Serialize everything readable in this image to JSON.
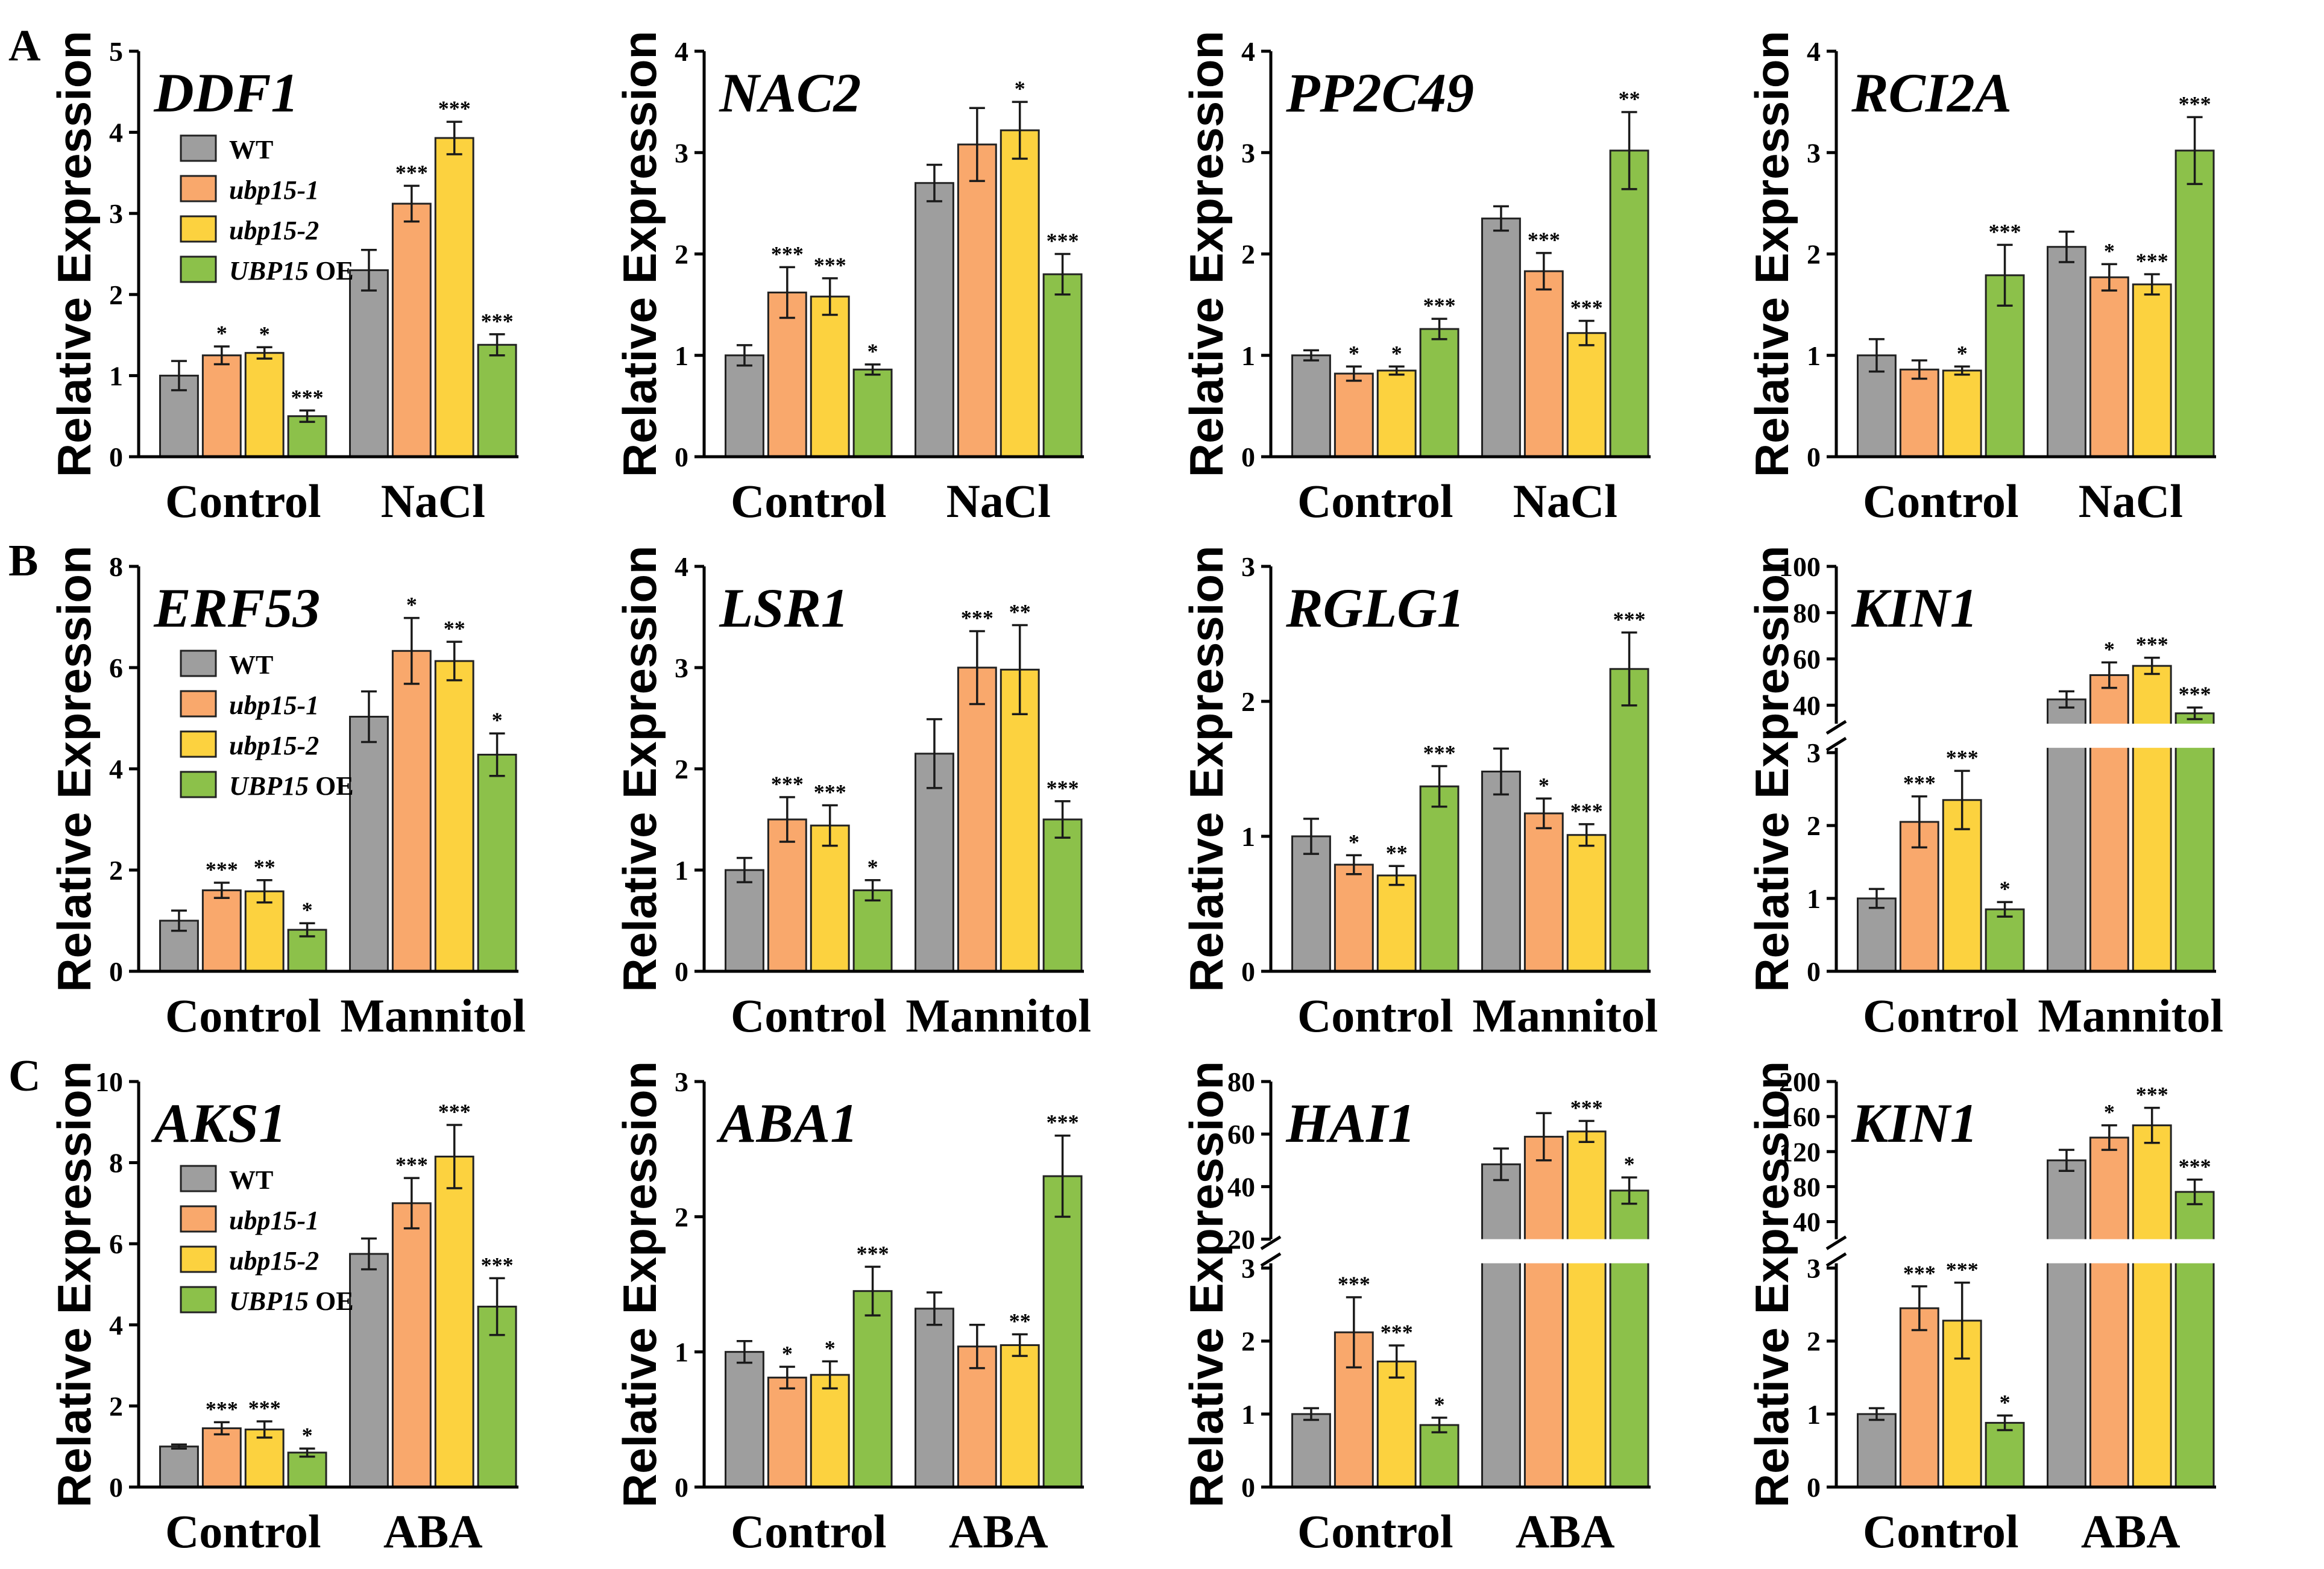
{
  "panel_letters": [
    "A",
    "B",
    "C"
  ],
  "ylabel": "Relative Expression",
  "series_colors": [
    "#9e9e9e",
    "#f9a86c",
    "#fcd23f",
    "#8cc14a"
  ],
  "legend": {
    "items": [
      {
        "italic": "",
        "plain": "WT"
      },
      {
        "italic": "ubp15-1",
        "plain": ""
      },
      {
        "italic": "ubp15-2",
        "plain": ""
      },
      {
        "italic": "UBP15",
        "plain": " OE"
      }
    ]
  },
  "chart_data": [
    {
      "type": "bar",
      "title": "DDF1",
      "categories": [
        "Control",
        "NaCl"
      ],
      "ylim": [
        0,
        5
      ],
      "yticks": [
        0,
        1,
        2,
        3,
        4,
        5
      ],
      "series": [
        {
          "name": "WT",
          "values": [
            1.0,
            2.3
          ],
          "errors": [
            0.18,
            0.25
          ],
          "sig": [
            "",
            ""
          ]
        },
        {
          "name": "ubp15-1",
          "values": [
            1.25,
            3.12
          ],
          "errors": [
            0.11,
            0.22
          ],
          "sig": [
            "*",
            "***"
          ]
        },
        {
          "name": "ubp15-2",
          "values": [
            1.28,
            3.93
          ],
          "errors": [
            0.07,
            0.2
          ],
          "sig": [
            "*",
            "***"
          ]
        },
        {
          "name": "UBP15 OE",
          "values": [
            0.5,
            1.38
          ],
          "errors": [
            0.07,
            0.13
          ],
          "sig": [
            "***",
            "***"
          ]
        }
      ]
    },
    {
      "type": "bar",
      "title": "NAC2",
      "categories": [
        "Control",
        "NaCl"
      ],
      "ylim": [
        0,
        4
      ],
      "yticks": [
        0,
        1,
        2,
        3,
        4
      ],
      "series": [
        {
          "name": "WT",
          "values": [
            1.0,
            2.7
          ],
          "errors": [
            0.1,
            0.18
          ],
          "sig": [
            "",
            ""
          ]
        },
        {
          "name": "ubp15-1",
          "values": [
            1.62,
            3.08
          ],
          "errors": [
            0.25,
            0.36
          ],
          "sig": [
            "***",
            ""
          ]
        },
        {
          "name": "ubp15-2",
          "values": [
            1.58,
            3.22
          ],
          "errors": [
            0.18,
            0.28
          ],
          "sig": [
            "***",
            "*"
          ]
        },
        {
          "name": "UBP15 OE",
          "values": [
            0.86,
            1.8
          ],
          "errors": [
            0.05,
            0.2
          ],
          "sig": [
            "*",
            "***"
          ]
        }
      ]
    },
    {
      "type": "bar",
      "title": "PP2C49",
      "categories": [
        "Control",
        "NaCl"
      ],
      "ylim": [
        0,
        4
      ],
      "yticks": [
        0,
        1,
        2,
        3,
        4
      ],
      "series": [
        {
          "name": "WT",
          "values": [
            1.0,
            2.35
          ],
          "errors": [
            0.05,
            0.12
          ],
          "sig": [
            "",
            ""
          ]
        },
        {
          "name": "ubp15-1",
          "values": [
            0.82,
            1.83
          ],
          "errors": [
            0.07,
            0.18
          ],
          "sig": [
            "*",
            "***"
          ]
        },
        {
          "name": "ubp15-2",
          "values": [
            0.85,
            1.22
          ],
          "errors": [
            0.04,
            0.12
          ],
          "sig": [
            "*",
            "***"
          ]
        },
        {
          "name": "UBP15 OE",
          "values": [
            1.26,
            3.02
          ],
          "errors": [
            0.1,
            0.38
          ],
          "sig": [
            "***",
            "**"
          ]
        }
      ]
    },
    {
      "type": "bar",
      "title": "RCI2A",
      "categories": [
        "Control",
        "NaCl"
      ],
      "ylim": [
        0,
        4
      ],
      "yticks": [
        0,
        1,
        2,
        3,
        4
      ],
      "series": [
        {
          "name": "WT",
          "values": [
            1.0,
            2.07
          ],
          "errors": [
            0.16,
            0.15
          ],
          "sig": [
            "",
            ""
          ]
        },
        {
          "name": "ubp15-1",
          "values": [
            0.86,
            1.77
          ],
          "errors": [
            0.09,
            0.13
          ],
          "sig": [
            "",
            "*"
          ]
        },
        {
          "name": "ubp15-2",
          "values": [
            0.85,
            1.7
          ],
          "errors": [
            0.04,
            0.1
          ],
          "sig": [
            "*",
            "***"
          ]
        },
        {
          "name": "UBP15 OE",
          "values": [
            1.79,
            3.02
          ],
          "errors": [
            0.3,
            0.33
          ],
          "sig": [
            "***",
            "***"
          ]
        }
      ]
    },
    {
      "type": "bar",
      "title": "ERF53",
      "categories": [
        "Control",
        "Mannitol"
      ],
      "ylim": [
        0,
        8
      ],
      "yticks": [
        0,
        2,
        4,
        6,
        8
      ],
      "series": [
        {
          "name": "WT",
          "values": [
            1.0,
            5.03
          ],
          "errors": [
            0.2,
            0.5
          ],
          "sig": [
            "",
            ""
          ]
        },
        {
          "name": "ubp15-1",
          "values": [
            1.6,
            6.33
          ],
          "errors": [
            0.15,
            0.65
          ],
          "sig": [
            "***",
            "*"
          ]
        },
        {
          "name": "ubp15-2",
          "values": [
            1.58,
            6.13
          ],
          "errors": [
            0.22,
            0.38
          ],
          "sig": [
            "**",
            "**"
          ]
        },
        {
          "name": "UBP15 OE",
          "values": [
            0.82,
            4.28
          ],
          "errors": [
            0.13,
            0.42
          ],
          "sig": [
            "*",
            "*"
          ]
        }
      ]
    },
    {
      "type": "bar",
      "title": "LSR1",
      "categories": [
        "Control",
        "Mannitol"
      ],
      "ylim": [
        0,
        4
      ],
      "yticks": [
        0,
        1,
        2,
        3,
        4
      ],
      "series": [
        {
          "name": "WT",
          "values": [
            1.0,
            2.15
          ],
          "errors": [
            0.12,
            0.34
          ],
          "sig": [
            "",
            ""
          ]
        },
        {
          "name": "ubp15-1",
          "values": [
            1.5,
            3.0
          ],
          "errors": [
            0.22,
            0.36
          ],
          "sig": [
            "***",
            "***"
          ]
        },
        {
          "name": "ubp15-2",
          "values": [
            1.44,
            2.98
          ],
          "errors": [
            0.2,
            0.44
          ],
          "sig": [
            "***",
            "**"
          ]
        },
        {
          "name": "UBP15 OE",
          "values": [
            0.8,
            1.5
          ],
          "errors": [
            0.1,
            0.18
          ],
          "sig": [
            "*",
            "***"
          ]
        }
      ]
    },
    {
      "type": "bar",
      "title": "RGLG1",
      "categories": [
        "Control",
        "Mannitol"
      ],
      "ylim": [
        0,
        3
      ],
      "yticks": [
        0,
        1,
        2,
        3
      ],
      "series": [
        {
          "name": "WT",
          "values": [
            1.0,
            1.48
          ],
          "errors": [
            0.13,
            0.17
          ],
          "sig": [
            "",
            ""
          ]
        },
        {
          "name": "ubp15-1",
          "values": [
            0.79,
            1.17
          ],
          "errors": [
            0.07,
            0.11
          ],
          "sig": [
            "*",
            "*"
          ]
        },
        {
          "name": "ubp15-2",
          "values": [
            0.71,
            1.01
          ],
          "errors": [
            0.07,
            0.08
          ],
          "sig": [
            "**",
            "***"
          ]
        },
        {
          "name": "UBP15 OE",
          "values": [
            1.37,
            2.24
          ],
          "errors": [
            0.15,
            0.27
          ],
          "sig": [
            "***",
            "***"
          ]
        }
      ]
    },
    {
      "type": "bar",
      "title": "KIN1",
      "categories": [
        "Control",
        "Mannitol"
      ],
      "broken_axis": true,
      "lower_range": [
        0,
        3
      ],
      "lower_ticks": [
        0,
        1,
        2,
        3
      ],
      "upper_range": [
        32,
        100
      ],
      "upper_ticks": [
        40,
        60,
        80,
        100
      ],
      "series": [
        {
          "name": "WT",
          "values": [
            1.0,
            42.5
          ],
          "errors": [
            0.13,
            3.5
          ],
          "sig": [
            "",
            ""
          ]
        },
        {
          "name": "ubp15-1",
          "values": [
            2.05,
            53.0
          ],
          "errors": [
            0.35,
            5.5
          ],
          "sig": [
            "***",
            "*"
          ]
        },
        {
          "name": "ubp15-2",
          "values": [
            2.35,
            57.0
          ],
          "errors": [
            0.4,
            3.5
          ],
          "sig": [
            "***",
            "***"
          ]
        },
        {
          "name": "UBP15 OE",
          "values": [
            0.85,
            36.5
          ],
          "errors": [
            0.1,
            2.5
          ],
          "sig": [
            "*",
            "***"
          ]
        }
      ]
    },
    {
      "type": "bar",
      "title": "AKS1",
      "categories": [
        "Control",
        "ABA"
      ],
      "ylim": [
        0,
        10
      ],
      "yticks": [
        0,
        2,
        4,
        6,
        8,
        10
      ],
      "series": [
        {
          "name": "WT",
          "values": [
            1.0,
            5.75
          ],
          "errors": [
            0.05,
            0.38
          ],
          "sig": [
            "",
            ""
          ]
        },
        {
          "name": "ubp15-1",
          "values": [
            1.45,
            7.0
          ],
          "errors": [
            0.15,
            0.62
          ],
          "sig": [
            "***",
            "***"
          ]
        },
        {
          "name": "ubp15-2",
          "values": [
            1.42,
            8.15
          ],
          "errors": [
            0.2,
            0.78
          ],
          "sig": [
            "***",
            "***"
          ]
        },
        {
          "name": "UBP15 OE",
          "values": [
            0.85,
            4.45
          ],
          "errors": [
            0.1,
            0.7
          ],
          "sig": [
            "*",
            "***"
          ]
        }
      ]
    },
    {
      "type": "bar",
      "title": "ABA1",
      "categories": [
        "Control",
        "ABA"
      ],
      "ylim": [
        0,
        3
      ],
      "yticks": [
        0,
        1,
        2,
        3
      ],
      "series": [
        {
          "name": "WT",
          "values": [
            1.0,
            1.32
          ],
          "errors": [
            0.08,
            0.12
          ],
          "sig": [
            "",
            ""
          ]
        },
        {
          "name": "ubp15-1",
          "values": [
            0.81,
            1.04
          ],
          "errors": [
            0.08,
            0.16
          ],
          "sig": [
            "*",
            ""
          ]
        },
        {
          "name": "ubp15-2",
          "values": [
            0.83,
            1.05
          ],
          "errors": [
            0.1,
            0.08
          ],
          "sig": [
            "*",
            "**"
          ]
        },
        {
          "name": "UBP15 OE",
          "values": [
            1.45,
            2.3
          ],
          "errors": [
            0.18,
            0.3
          ],
          "sig": [
            "***",
            "***"
          ]
        }
      ]
    },
    {
      "type": "bar",
      "title": "HAI1",
      "categories": [
        "Control",
        "ABA"
      ],
      "broken_axis": true,
      "lower_range": [
        0,
        3
      ],
      "lower_ticks": [
        0,
        1,
        2,
        3
      ],
      "upper_range": [
        20,
        80
      ],
      "upper_ticks": [
        20,
        40,
        60,
        80
      ],
      "series": [
        {
          "name": "WT",
          "values": [
            1.0,
            48.5
          ],
          "errors": [
            0.08,
            6.0
          ],
          "sig": [
            "",
            ""
          ]
        },
        {
          "name": "ubp15-1",
          "values": [
            2.12,
            59.0
          ],
          "errors": [
            0.48,
            9.0
          ],
          "sig": [
            "***",
            ""
          ]
        },
        {
          "name": "ubp15-2",
          "values": [
            1.72,
            61.0
          ],
          "errors": [
            0.22,
            4.0
          ],
          "sig": [
            "***",
            "***"
          ]
        },
        {
          "name": "UBP15 OE",
          "values": [
            0.85,
            38.5
          ],
          "errors": [
            0.1,
            5.0
          ],
          "sig": [
            "*",
            "*"
          ]
        }
      ]
    },
    {
      "type": "bar",
      "title": "KIN1",
      "categories": [
        "Control",
        "ABA"
      ],
      "broken_axis": true,
      "lower_range": [
        0,
        3
      ],
      "lower_ticks": [
        0,
        1,
        2,
        3
      ],
      "upper_range": [
        20,
        200
      ],
      "upper_ticks": [
        40,
        80,
        120,
        160,
        200
      ],
      "series": [
        {
          "name": "WT",
          "values": [
            1.0,
            110.0
          ],
          "errors": [
            0.08,
            12.0
          ],
          "sig": [
            "",
            ""
          ]
        },
        {
          "name": "ubp15-1",
          "values": [
            2.45,
            136.0
          ],
          "errors": [
            0.3,
            14.0
          ],
          "sig": [
            "***",
            "*"
          ]
        },
        {
          "name": "ubp15-2",
          "values": [
            2.28,
            150.0
          ],
          "errors": [
            0.52,
            20.0
          ],
          "sig": [
            "***",
            "***"
          ]
        },
        {
          "name": "UBP15 OE",
          "values": [
            0.88,
            74.0
          ],
          "errors": [
            0.1,
            14.0
          ],
          "sig": [
            "*",
            "***"
          ]
        }
      ]
    }
  ]
}
